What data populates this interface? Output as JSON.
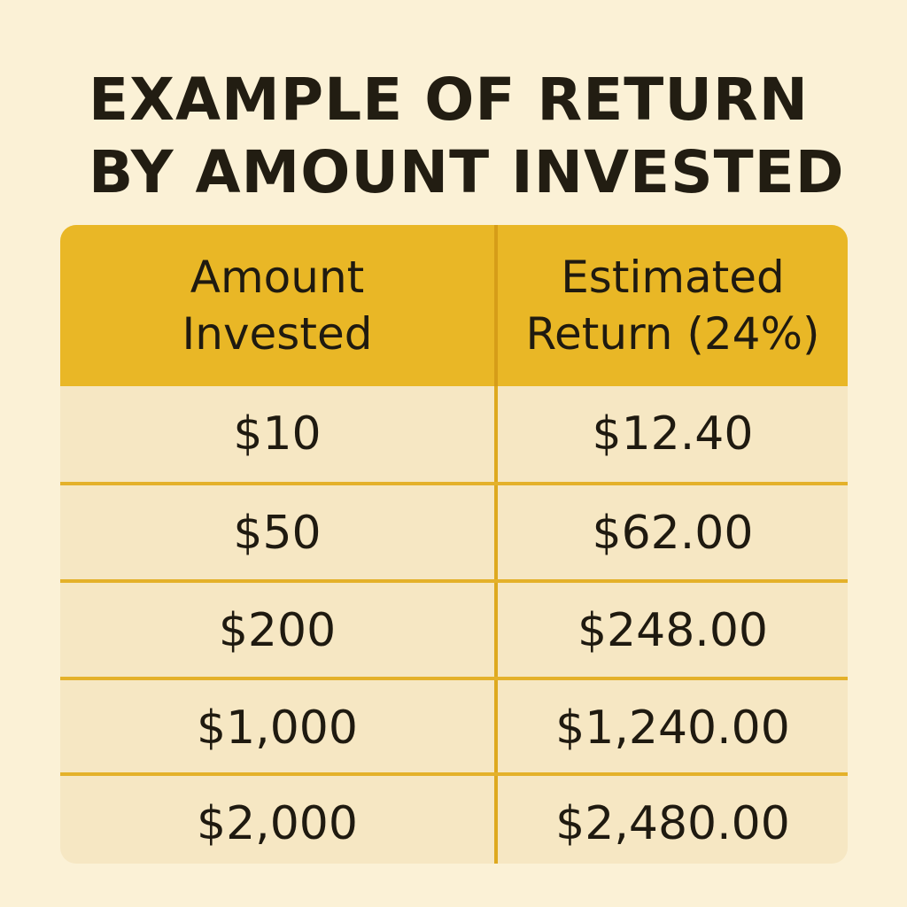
{
  "title": {
    "line1": "EXAMPLE OF RETURN",
    "line2": "BY AMOUNT INVESTED"
  },
  "table": {
    "headers": [
      {
        "line1": "Amount",
        "line2": "Invested"
      },
      {
        "line1": "Estimated",
        "line2": "Return (24%)"
      }
    ],
    "rows": [
      {
        "amount": "$10",
        "return": "$12.40"
      },
      {
        "amount": "$50",
        "return": "$62.00"
      },
      {
        "amount": "$200",
        "return": "$248.00"
      },
      {
        "amount": "$1,000",
        "return": "$1,240.00"
      },
      {
        "amount": "$2,000",
        "return": "$2,480.00"
      }
    ]
  },
  "colors": {
    "background": "#fbf1d6",
    "header": "#e9b726",
    "row": "#f6e7c3",
    "divider": "#e4b12a",
    "text": "#1f1a10"
  }
}
